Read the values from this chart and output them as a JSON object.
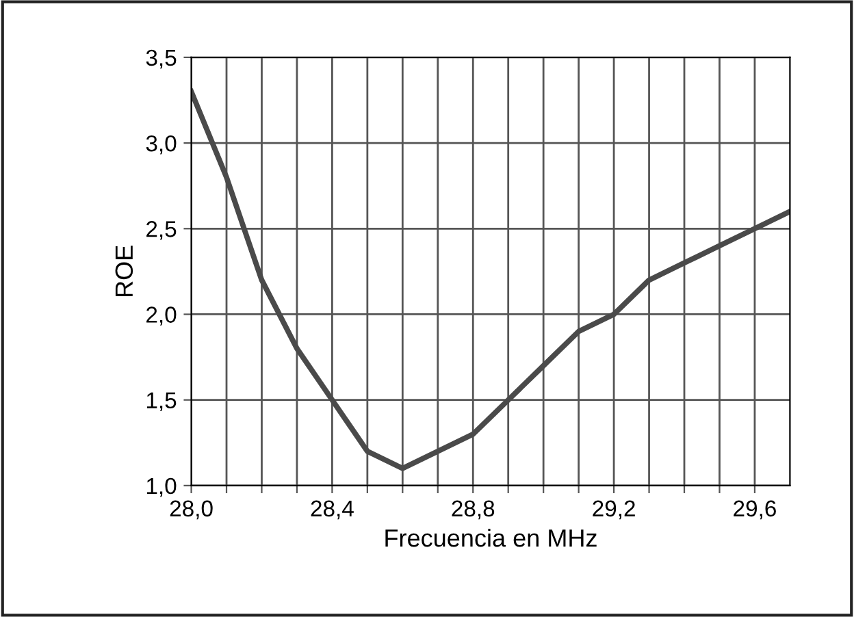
{
  "chart_data": {
    "type": "line",
    "xlabel": "Frecuencia en MHz",
    "ylabel": "ROE",
    "x": [
      28.0,
      28.1,
      28.2,
      28.3,
      28.4,
      28.5,
      28.6,
      28.8,
      28.9,
      29.0,
      29.1,
      29.2,
      29.3,
      29.4,
      29.5,
      29.6,
      29.7
    ],
    "series": [
      {
        "color": "#4a4a4a",
        "values": [
          3.3,
          2.8,
          2.2,
          1.8,
          1.5,
          1.2,
          1.1,
          1.3,
          1.5,
          1.7,
          1.9,
          2.0,
          2.2,
          2.3,
          2.4,
          2.5,
          2.6
        ]
      }
    ],
    "xlim": [
      28.0,
      29.7
    ],
    "xticks": [
      {
        "value": 28.0,
        "label": "28,0"
      },
      {
        "value": 28.1,
        "label": null
      },
      {
        "value": 28.2,
        "label": null
      },
      {
        "value": 28.3,
        "label": null
      },
      {
        "value": 28.4,
        "label": "28,4"
      },
      {
        "value": 28.5,
        "label": null
      },
      {
        "value": 28.6,
        "label": null
      },
      {
        "value": 28.7,
        "label": null
      },
      {
        "value": 28.8,
        "label": "28,8"
      },
      {
        "value": 28.9,
        "label": null
      },
      {
        "value": 29.0,
        "label": null
      },
      {
        "value": 29.1,
        "label": null
      },
      {
        "value": 29.2,
        "label": "29,2"
      },
      {
        "value": 29.3,
        "label": null
      },
      {
        "value": 29.4,
        "label": null
      },
      {
        "value": 29.5,
        "label": null
      },
      {
        "value": 29.6,
        "label": "29,6"
      }
    ],
    "ylim": [
      1.0,
      3.5
    ],
    "yticks": [
      {
        "value": 1.0,
        "label": "1,0"
      },
      {
        "value": 1.5,
        "label": "1,5"
      },
      {
        "value": 2.0,
        "label": "2,0"
      },
      {
        "value": 2.5,
        "label": "2,5"
      },
      {
        "value": 3.0,
        "label": "3,0"
      },
      {
        "value": 3.5,
        "label": "3,5"
      }
    ],
    "grid": true,
    "legend": false,
    "marker": "none",
    "line_style": "solid"
  }
}
